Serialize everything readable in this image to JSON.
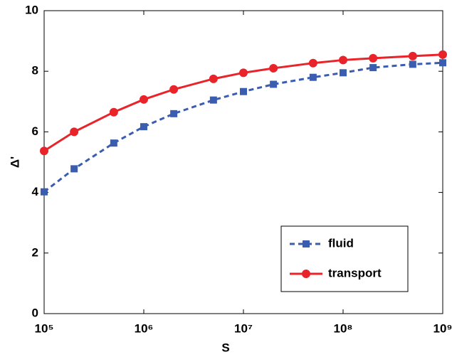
{
  "chart_data": {
    "type": "line",
    "x_label": "S",
    "y_label": "Δ'",
    "x": [
      100000,
      200000,
      500000,
      1000000,
      2000000,
      5000000,
      10000000,
      20000000,
      50000000,
      100000000,
      200000000,
      500000000,
      1000000000
    ],
    "series": [
      {
        "name": "fluid",
        "color": "#3a5db0",
        "dashed": true,
        "marker": "square",
        "values": [
          4.02,
          4.78,
          5.63,
          6.17,
          6.6,
          7.05,
          7.33,
          7.57,
          7.8,
          7.95,
          8.12,
          8.23,
          8.28
        ]
      },
      {
        "name": "transport",
        "color": "#e8242a",
        "dashed": false,
        "marker": "circle",
        "values": [
          5.37,
          6.0,
          6.65,
          7.07,
          7.4,
          7.75,
          7.95,
          8.1,
          8.27,
          8.37,
          8.43,
          8.5,
          8.55
        ]
      }
    ],
    "xlog": true,
    "xlim": [
      100000,
      1000000000
    ],
    "xticks": [
      {
        "value": 100000,
        "label": "10⁵"
      },
      {
        "value": 1000000,
        "label": "10⁶"
      },
      {
        "value": 10000000,
        "label": "10⁷"
      },
      {
        "value": 100000000,
        "label": "10⁸"
      },
      {
        "value": 1000000000,
        "label": "10⁹"
      }
    ],
    "ylim": [
      0,
      10
    ],
    "yticks": [
      0,
      2,
      4,
      6,
      8,
      10
    ],
    "grid": false,
    "legend": "lower right"
  }
}
